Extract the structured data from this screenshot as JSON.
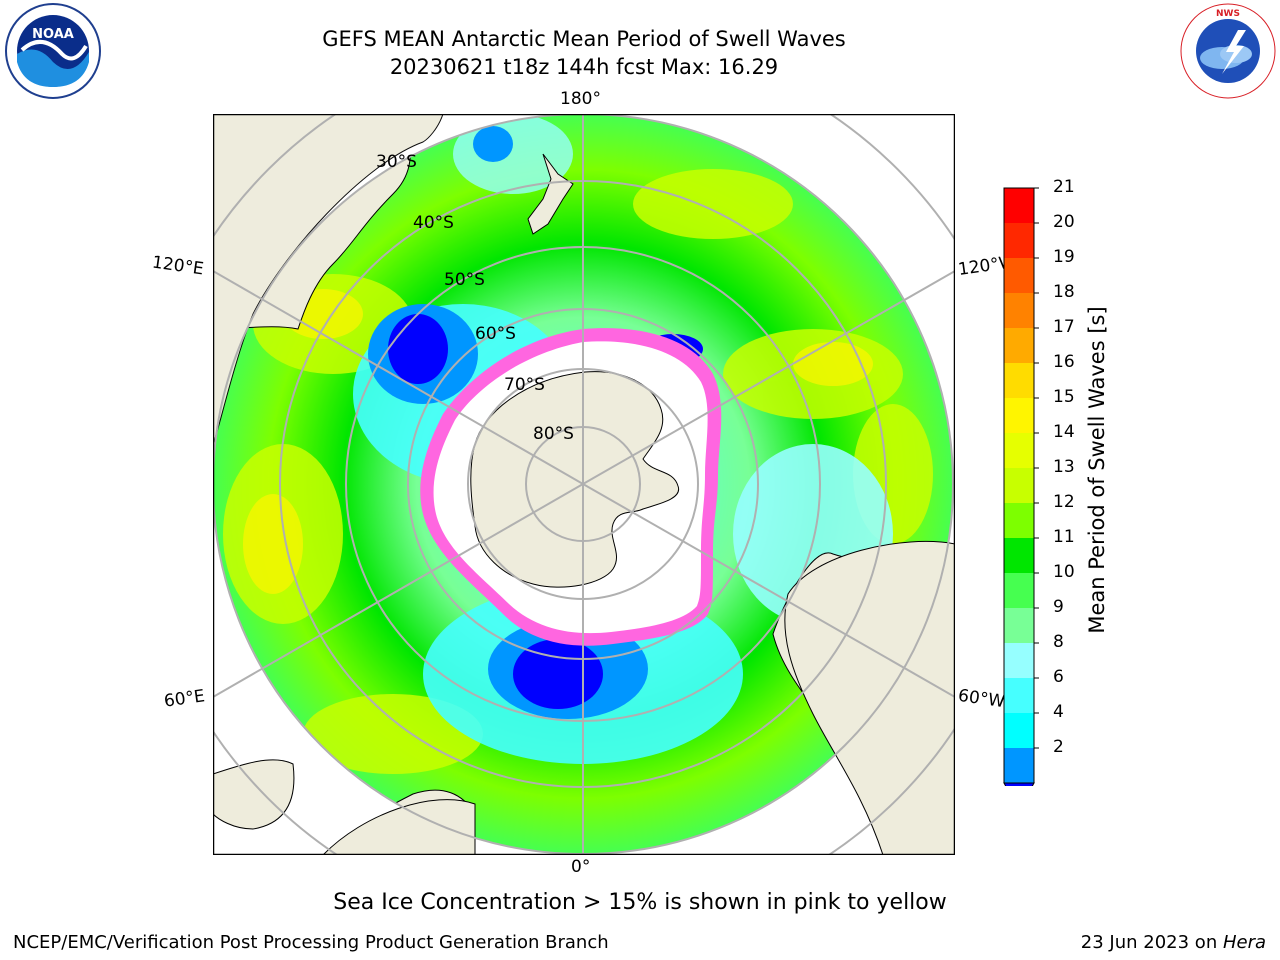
{
  "header": {
    "title_line1": "GEFS MEAN Antarctic Mean Period of Swell Waves",
    "title_line2": "20230621 t18z 144h fcst   Max: 16.29"
  },
  "logos": {
    "noaa_text": "NOAA",
    "noaa_ring": "NATIONAL OCEANIC AND ATMOSPHERIC ADMINISTRATION · U.S. DEPARTMENT OF COMMERCE",
    "nws_ring": "NATIONAL WEATHER SERVICE"
  },
  "map": {
    "projection": "south-polar-stereographic",
    "lon_labels": {
      "top": "180°",
      "bottom": "0°",
      "left_upper": "120°E",
      "left_lower": "60°E",
      "right_upper": "120°W",
      "right_lower": "60°W"
    },
    "lat_labels": [
      "30°S",
      "40°S",
      "50°S",
      "60°S",
      "70°S",
      "80°S"
    ],
    "colors": {
      "land": "#eeecdc",
      "ice": "#ffffff",
      "ice_edge": "#ff44dd",
      "grid": "#b0b0b0"
    }
  },
  "colorbar": {
    "title": "Mean Period of Swell Waves [s]",
    "ticks": [
      "21",
      "20",
      "19",
      "18",
      "17",
      "16",
      "15",
      "14",
      "13",
      "12",
      "11",
      "10",
      "9",
      "8",
      "6",
      "4",
      "2"
    ],
    "colors": [
      "#ff0000",
      "#ff2800",
      "#ff5a00",
      "#ff8200",
      "#ffaa00",
      "#ffdc00",
      "#fff500",
      "#e6ff00",
      "#c8ff00",
      "#7dff00",
      "#00e600",
      "#46ff50",
      "#78ff96",
      "#96ffff",
      "#46ffff",
      "#00ffff",
      "#0096ff"
    ],
    "under_color": "#0000ff"
  },
  "note": "Sea Ice Concentration > 15% is shown in pink to yellow",
  "footer": {
    "left": "NCEP/EMC/Verification Post Processing Product Generation Branch",
    "right_prefix": "23 Jun 2023 on ",
    "right_host": "Hera"
  }
}
